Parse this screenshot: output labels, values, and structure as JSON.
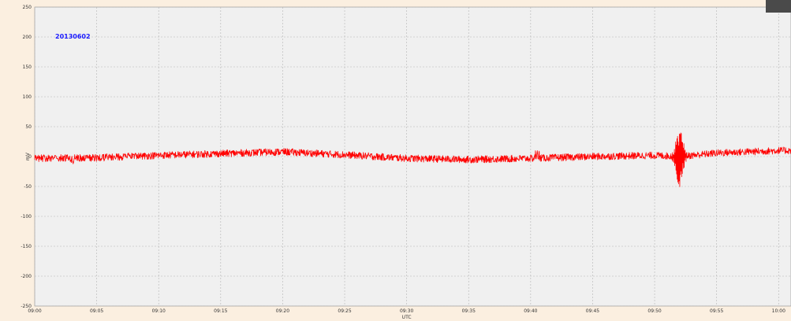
{
  "chart_data": {
    "type": "line",
    "title": "20130602",
    "xlabel": "UTC",
    "ylabel": "mV",
    "xlim_minutes": [
      0,
      61
    ],
    "ylim": [
      -250,
      250
    ],
    "x_ticks": [
      "09:00",
      "09:05",
      "09:10",
      "09:15",
      "09:20",
      "09:25",
      "09:30",
      "09:35",
      "09:40",
      "09:45",
      "09:50",
      "09:55",
      "10:00"
    ],
    "y_ticks": [
      250,
      200,
      150,
      100,
      50,
      0,
      -50,
      -100,
      -150,
      -200,
      -250
    ],
    "grid": true,
    "series": [
      {
        "x": [
          "09:00",
          "09:05",
          "09:10",
          "09:15",
          "09:20",
          "09:25",
          "09:30",
          "09:35",
          "09:40",
          "09:45",
          "09:50",
          "09:52",
          "09:55",
          "10:00"
        ],
        "values": [
          -3,
          -2,
          2,
          5,
          8,
          3,
          -3,
          -5,
          -3,
          0,
          2,
          0,
          6,
          10
        ]
      }
    ],
    "annotations": [
      {
        "x": "09:52",
        "peak": 48,
        "trough": -55
      }
    ],
    "colors": {
      "series": "#ff0000",
      "plot_background": "#f0f0f0",
      "outer_background": "#fbefe0",
      "grid": "#b4b4b4",
      "title": "#1a1aff"
    }
  }
}
